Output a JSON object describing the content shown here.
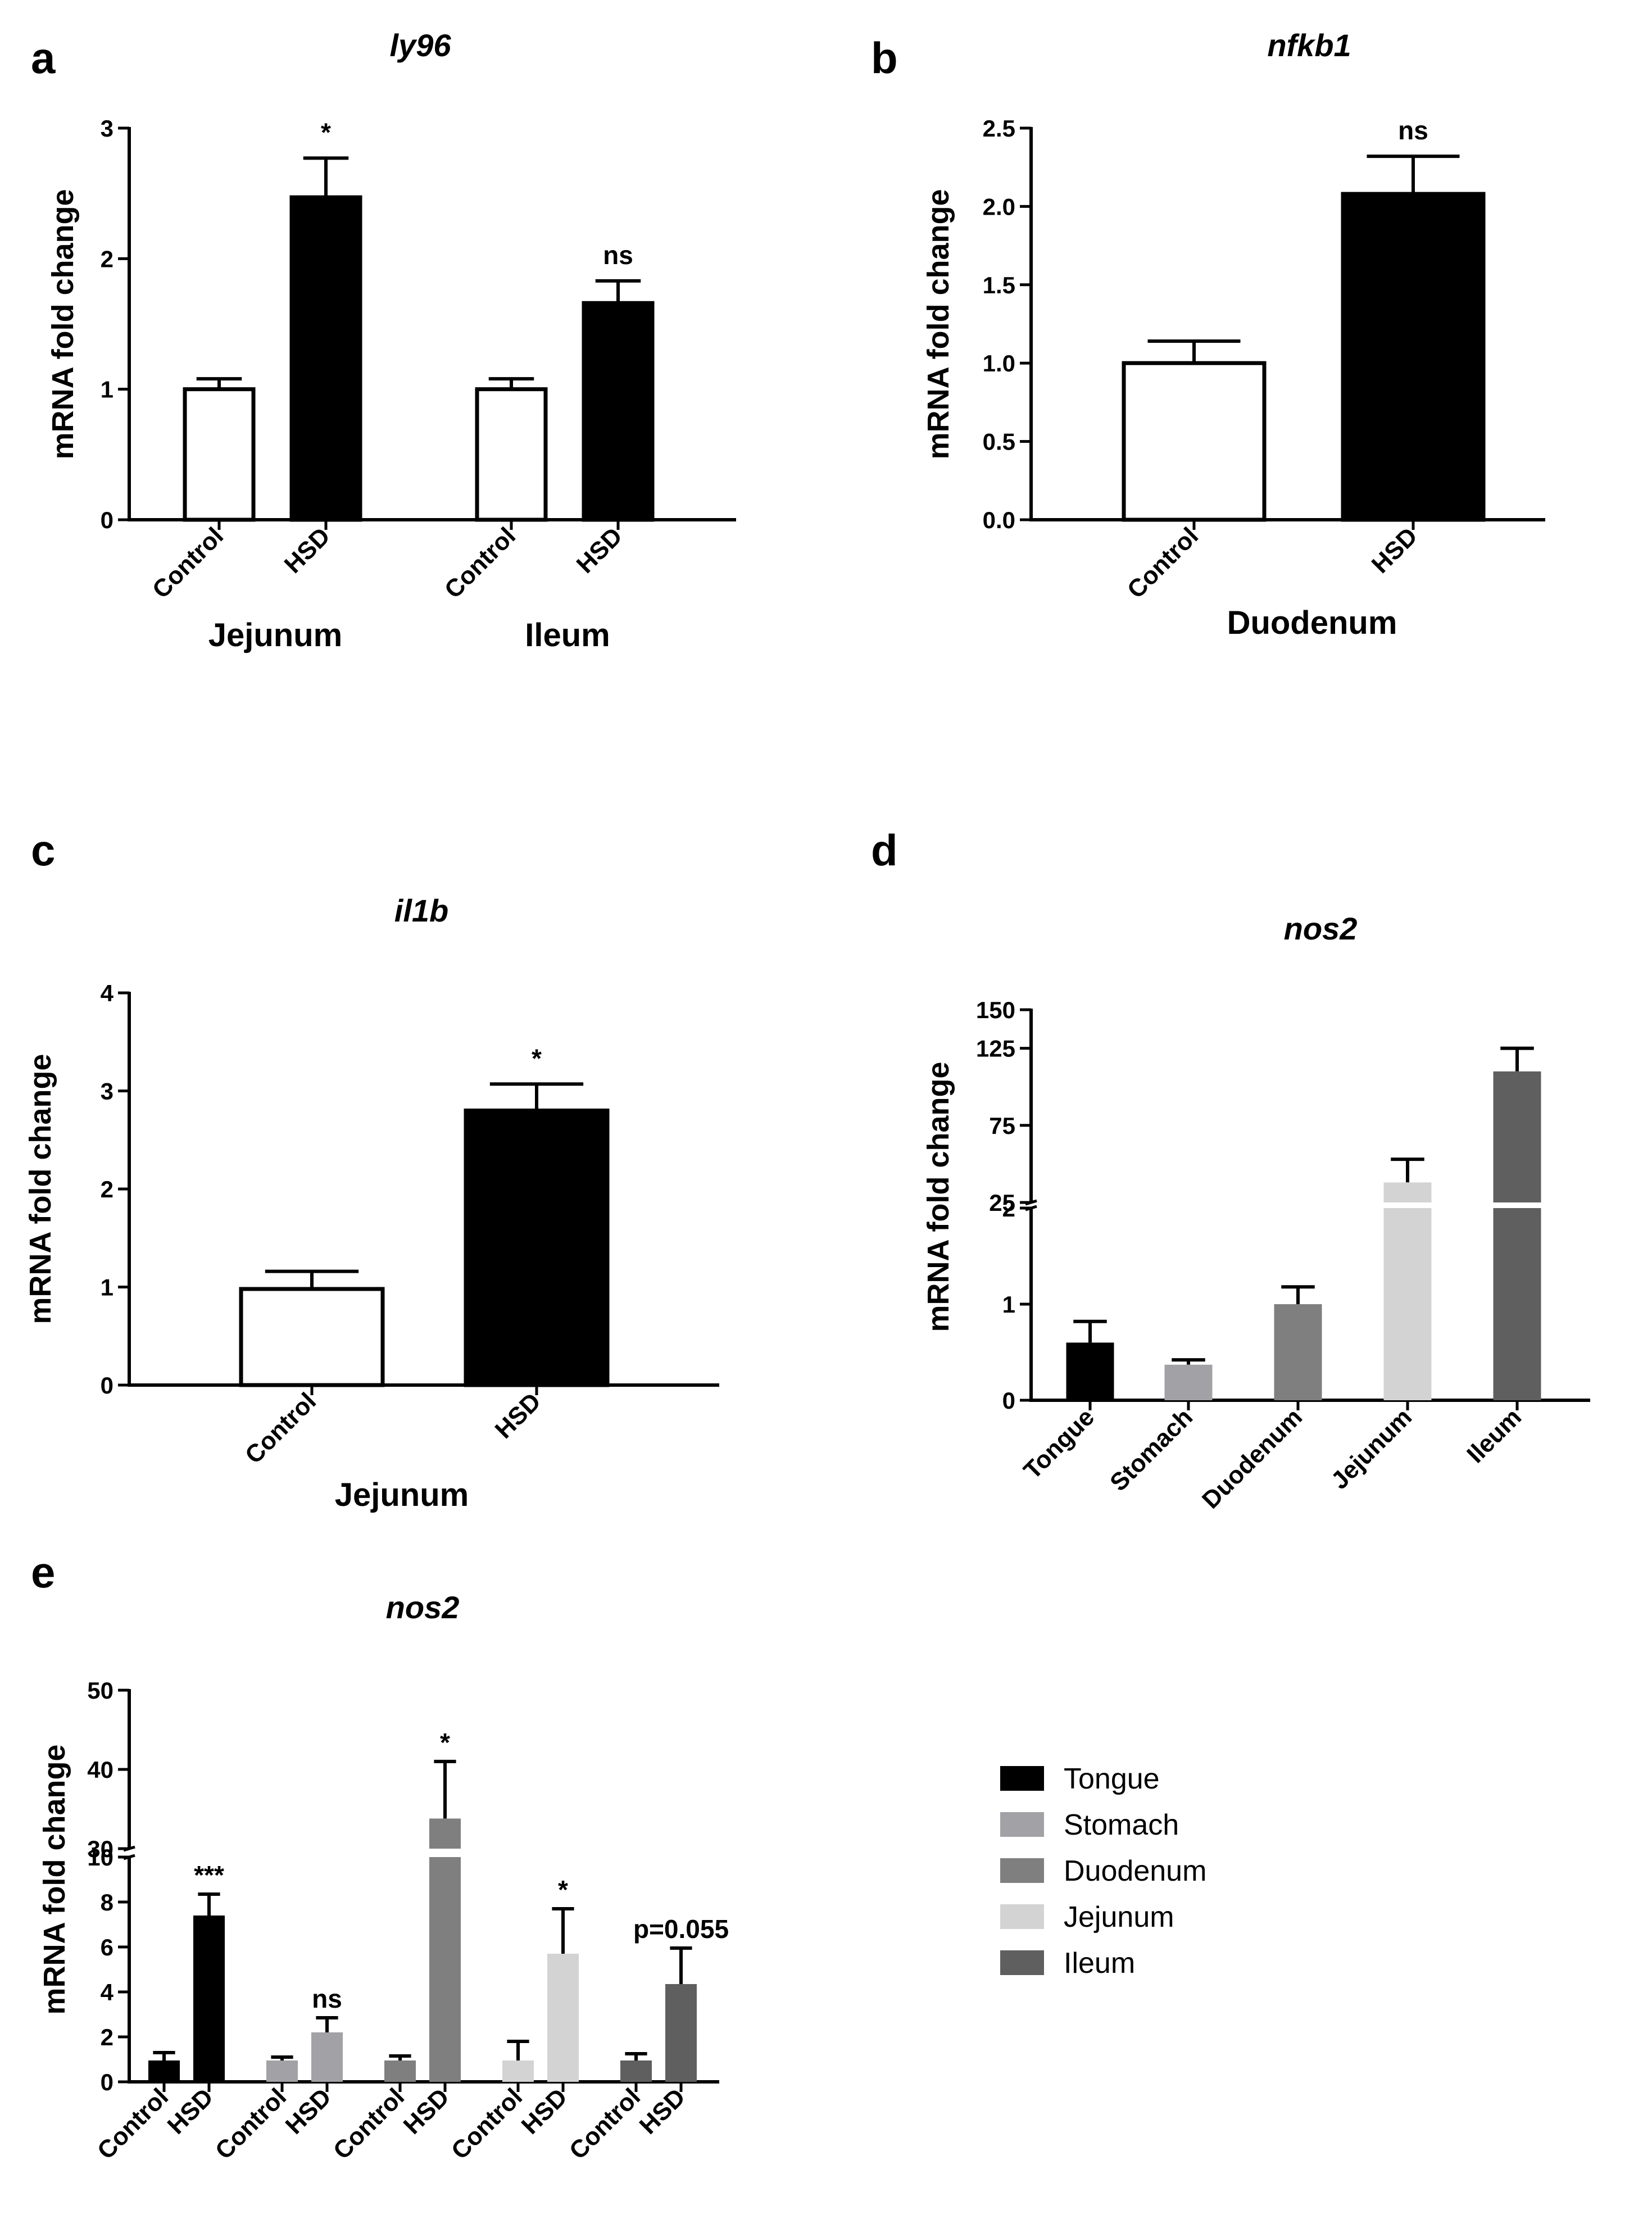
{
  "chart_data": [
    {
      "id": "a",
      "type": "bar",
      "panel_label": "a",
      "title": "ly96",
      "ylabel": "mRNA fold change",
      "ylim": [
        0,
        3
      ],
      "yticks": [
        "0",
        "1",
        "2",
        "3"
      ],
      "groups": [
        "Jejunum",
        "Ileum"
      ],
      "bars": [
        {
          "label": "Control",
          "group": "Jejunum",
          "value": 1.0,
          "error": 0.08,
          "fill": "#ffffff"
        },
        {
          "label": "HSD",
          "group": "Jejunum",
          "value": 2.47,
          "error": 0.3,
          "fill": "#000000",
          "sig": "*"
        },
        {
          "label": "Control",
          "group": "Ileum",
          "value": 1.0,
          "error": 0.08,
          "fill": "#ffffff"
        },
        {
          "label": "HSD",
          "group": "Ileum",
          "value": 1.66,
          "error": 0.17,
          "fill": "#000000",
          "sig": "ns"
        }
      ]
    },
    {
      "id": "b",
      "type": "bar",
      "panel_label": "b",
      "title": "nfkb1",
      "ylabel": "mRNA fold change",
      "ylim": [
        0,
        2.5
      ],
      "yticks": [
        "0.0",
        "0.5",
        "1.0",
        "1.5",
        "2.0",
        "2.5"
      ],
      "groups": [
        "Duodenum"
      ],
      "bars": [
        {
          "label": "Control",
          "group": "Duodenum",
          "value": 1.0,
          "error": 0.14,
          "fill": "#ffffff"
        },
        {
          "label": "HSD",
          "group": "Duodenum",
          "value": 2.08,
          "error": 0.24,
          "fill": "#000000",
          "sig": "ns"
        }
      ]
    },
    {
      "id": "c",
      "type": "bar",
      "panel_label": "c",
      "title": "il1b",
      "ylabel": "mRNA fold change",
      "ylim": [
        0,
        4
      ],
      "yticks": [
        "0",
        "1",
        "2",
        "3",
        "4"
      ],
      "groups": [
        "Jejunum"
      ],
      "bars": [
        {
          "label": "Control",
          "group": "Jejunum",
          "value": 0.98,
          "error": 0.18,
          "fill": "#ffffff"
        },
        {
          "label": "HSD",
          "group": "Jejunum",
          "value": 2.8,
          "error": 0.27,
          "fill": "#000000",
          "sig": "*"
        }
      ]
    },
    {
      "id": "d",
      "type": "bar",
      "panel_label": "d",
      "title": "nos2",
      "ylabel": "mRNA fold change",
      "y_axis_break": {
        "lower_range": [
          0,
          2
        ],
        "upper_range": [
          25,
          150
        ]
      },
      "yticks_lower": [
        "0",
        "1",
        "2"
      ],
      "yticks_upper": [
        "25",
        "75",
        "125",
        "150"
      ],
      "bars": [
        {
          "label": "Tongue",
          "value": 0.6,
          "error": 0.22,
          "fill": "#000000"
        },
        {
          "label": "Stomach",
          "value": 0.37,
          "error": 0.05,
          "fill": "#a1a1a6"
        },
        {
          "label": "Duodenum",
          "value": 1.0,
          "error": 0.18,
          "fill": "#7f7f7f"
        },
        {
          "label": "Jejunum",
          "value": 38,
          "error": 15,
          "fill": "#d3d3d3"
        },
        {
          "label": "Ileum",
          "value": 110,
          "error": 15,
          "fill": "#5f5f5f"
        }
      ]
    },
    {
      "id": "e",
      "type": "bar",
      "panel_label": "e",
      "title": "nos2",
      "ylabel": "mRNA fold change",
      "y_axis_break": {
        "lower_range": [
          0,
          10
        ],
        "upper_range": [
          30,
          50
        ]
      },
      "yticks_lower": [
        "0",
        "2",
        "4",
        "6",
        "8",
        "10"
      ],
      "yticks_upper": [
        "30",
        "40",
        "50"
      ],
      "bars": [
        {
          "label": "Control",
          "tissue": "Tongue",
          "value": 0.95,
          "error": 0.35,
          "fill": "#000000"
        },
        {
          "label": "HSD",
          "tissue": "Tongue",
          "value": 7.4,
          "error": 0.95,
          "fill": "#000000",
          "sig": "***"
        },
        {
          "label": "Control",
          "tissue": "Stomach",
          "value": 0.95,
          "error": 0.15,
          "fill": "#a1a1a6"
        },
        {
          "label": "HSD",
          "tissue": "Stomach",
          "value": 2.2,
          "error": 0.65,
          "fill": "#a1a1a6",
          "sig": "ns"
        },
        {
          "label": "Control",
          "tissue": "Duodenum",
          "value": 0.95,
          "error": 0.2,
          "fill": "#7f7f7f"
        },
        {
          "label": "HSD",
          "tissue": "Duodenum",
          "value": 33.8,
          "error": 7.2,
          "fill": "#7f7f7f",
          "sig": "*"
        },
        {
          "label": "Control",
          "tissue": "Jejunum",
          "value": 0.95,
          "error": 0.85,
          "fill": "#d3d3d3"
        },
        {
          "label": "HSD",
          "tissue": "Jejunum",
          "value": 5.7,
          "error": 2.0,
          "fill": "#d3d3d3",
          "sig": "*"
        },
        {
          "label": "Control",
          "tissue": "Ileum",
          "value": 0.95,
          "error": 0.3,
          "fill": "#5f5f5f"
        },
        {
          "label": "HSD",
          "tissue": "Ileum",
          "value": 4.35,
          "error": 1.6,
          "fill": "#5f5f5f",
          "sig": "p=0.055"
        }
      ],
      "legend": [
        {
          "label": "Tongue",
          "color": "#000000"
        },
        {
          "label": "Stomach",
          "color": "#a1a1a6"
        },
        {
          "label": "Duodenum",
          "color": "#7f7f7f"
        },
        {
          "label": "Jejunum",
          "color": "#d3d3d3"
        },
        {
          "label": "Ileum",
          "color": "#5f5f5f"
        }
      ]
    }
  ]
}
